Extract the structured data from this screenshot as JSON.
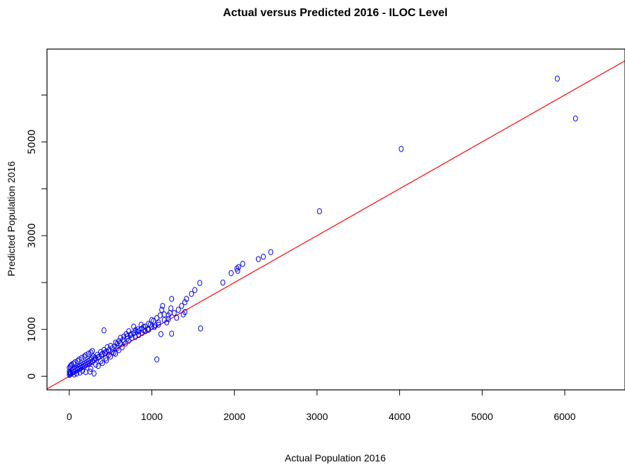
{
  "chart_data": {
    "type": "scatter",
    "title": "Actual versus Predicted 2016 - ILOC Level",
    "xlabel": "Actual Population 2016",
    "ylabel": "Predicted Population 2016",
    "xlim": [
      -270,
      6730
    ],
    "ylim": [
      -290,
      6980
    ],
    "xticks": [
      0,
      1000,
      2000,
      3000,
      4000,
      5000,
      6000
    ],
    "xtick_labels": [
      "0",
      "1000",
      "2000",
      "3000",
      "4000",
      "5000",
      "6000"
    ],
    "yticks": [
      0,
      1000,
      2000,
      3000,
      4000,
      5000,
      6000
    ],
    "ytick_labels": [
      "0",
      "1000",
      "",
      "3000",
      "",
      "5000",
      ""
    ],
    "grid": false,
    "point_color": "#0000ff",
    "line_color": "#ff0000",
    "fit_line": {
      "slope": 1.0,
      "intercept": 0
    },
    "series": [
      {
        "points": [
          [
            5910,
            6350
          ],
          [
            6130,
            5500
          ],
          [
            4020,
            4850
          ],
          [
            3030,
            3520
          ],
          [
            2440,
            2650
          ],
          [
            2350,
            2550
          ],
          [
            2290,
            2500
          ],
          [
            2100,
            2400
          ],
          [
            2050,
            2330
          ],
          [
            2030,
            2300
          ],
          [
            2040,
            2250
          ],
          [
            1960,
            2200
          ],
          [
            1860,
            2000
          ],
          [
            1580,
            1990
          ],
          [
            1520,
            1840
          ],
          [
            1480,
            1760
          ],
          [
            1420,
            1650
          ],
          [
            1400,
            1580
          ],
          [
            1360,
            1500
          ],
          [
            1320,
            1420
          ],
          [
            1400,
            1370
          ],
          [
            1380,
            1320
          ],
          [
            1300,
            1250
          ],
          [
            1270,
            1350
          ],
          [
            1230,
            1450
          ],
          [
            1240,
            1650
          ],
          [
            1220,
            1350
          ],
          [
            1200,
            1300
          ],
          [
            1150,
            1320
          ],
          [
            1130,
            1500
          ],
          [
            1120,
            1420
          ],
          [
            1100,
            1300
          ],
          [
            1150,
            1200
          ],
          [
            1180,
            1150
          ],
          [
            1080,
            1100
          ],
          [
            1030,
            1050
          ],
          [
            980,
            1100
          ],
          [
            1000,
            1200
          ],
          [
            950,
            1000
          ],
          [
            900,
            1050
          ],
          [
            900,
            980
          ],
          [
            870,
            1100
          ],
          [
            830,
            1000
          ],
          [
            820,
            950
          ],
          [
            800,
            980
          ],
          [
            780,
            1060
          ],
          [
            750,
            900
          ],
          [
            720,
            960
          ],
          [
            700,
            850
          ],
          [
            690,
            900
          ],
          [
            660,
            850
          ],
          [
            650,
            780
          ],
          [
            620,
            820
          ],
          [
            600,
            750
          ],
          [
            580,
            700
          ],
          [
            560,
            720
          ],
          [
            550,
            640
          ],
          [
            520,
            600
          ],
          [
            500,
            650
          ],
          [
            480,
            560
          ],
          [
            460,
            620
          ],
          [
            450,
            530
          ],
          [
            430,
            500
          ],
          [
            420,
            560
          ],
          [
            400,
            480
          ],
          [
            390,
            450
          ],
          [
            380,
            520
          ],
          [
            360,
            420
          ],
          [
            350,
            400
          ],
          [
            340,
            460
          ],
          [
            320,
            380
          ],
          [
            310,
            400
          ],
          [
            300,
            350
          ],
          [
            290,
            420
          ],
          [
            280,
            310
          ],
          [
            270,
            380
          ],
          [
            260,
            300
          ],
          [
            250,
            350
          ],
          [
            240,
            270
          ],
          [
            230,
            320
          ],
          [
            220,
            260
          ],
          [
            210,
            300
          ],
          [
            200,
            240
          ],
          [
            190,
            280
          ],
          [
            180,
            210
          ],
          [
            170,
            260
          ],
          [
            160,
            200
          ],
          [
            150,
            240
          ],
          [
            140,
            180
          ],
          [
            130,
            220
          ],
          [
            120,
            160
          ],
          [
            110,
            200
          ],
          [
            100,
            150
          ],
          [
            90,
            170
          ],
          [
            80,
            120
          ],
          [
            70,
            160
          ],
          [
            60,
            100
          ],
          [
            50,
            140
          ],
          [
            40,
            80
          ],
          [
            30,
            120
          ],
          [
            20,
            60
          ],
          [
            15,
            90
          ],
          [
            10,
            40
          ],
          [
            5,
            70
          ],
          [
            0,
            30
          ],
          [
            0,
            100
          ],
          [
            0,
            180
          ],
          [
            10,
            210
          ],
          [
            20,
            230
          ],
          [
            30,
            250
          ],
          [
            50,
            270
          ],
          [
            70,
            300
          ],
          [
            100,
            330
          ],
          [
            120,
            360
          ],
          [
            150,
            390
          ],
          [
            180,
            420
          ],
          [
            200,
            450
          ],
          [
            230,
            480
          ],
          [
            260,
            510
          ],
          [
            280,
            540
          ],
          [
            420,
            980
          ],
          [
            1060,
            360
          ],
          [
            1590,
            1020
          ],
          [
            1240,
            910
          ],
          [
            1110,
            900
          ],
          [
            560,
            480
          ],
          [
            600,
            560
          ],
          [
            640,
            620
          ],
          [
            680,
            700
          ],
          [
            720,
            760
          ],
          [
            760,
            820
          ],
          [
            800,
            840
          ],
          [
            840,
            880
          ],
          [
            880,
            920
          ],
          [
            920,
            960
          ],
          [
            960,
            990
          ],
          [
            1000,
            1060
          ],
          [
            1040,
            1080
          ],
          [
            1080,
            1150
          ],
          [
            1200,
            1220
          ],
          [
            300,
            60
          ],
          [
            250,
            100
          ],
          [
            200,
            90
          ],
          [
            350,
            220
          ],
          [
            400,
            280
          ],
          [
            450,
            340
          ],
          [
            500,
            420
          ],
          [
            540,
            500
          ],
          [
            160,
            120
          ],
          [
            130,
            80
          ],
          [
            90,
            60
          ],
          [
            60,
            40
          ],
          [
            260,
            160
          ],
          [
            320,
            250
          ],
          [
            380,
            320
          ],
          [
            440,
            380
          ],
          [
            480,
            460
          ],
          [
            520,
            520
          ],
          [
            580,
            600
          ],
          [
            620,
            700
          ],
          [
            660,
            740
          ],
          [
            700,
            800
          ],
          [
            740,
            880
          ],
          [
            780,
            920
          ],
          [
            840,
            960
          ],
          [
            880,
            1020
          ],
          [
            920,
            1060
          ],
          [
            960,
            1120
          ],
          [
            1020,
            1180
          ],
          [
            1060,
            1240
          ]
        ]
      }
    ]
  }
}
